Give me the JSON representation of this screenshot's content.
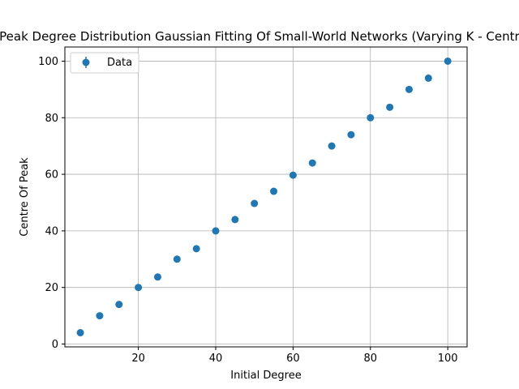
{
  "chart_data": {
    "type": "scatter",
    "title": "Centre Of Peak Degree Distribution Gaussian Fitting Of Small-World Networks (Varying K - Centre Of Peak)",
    "xlabel": "Initial Degree",
    "ylabel": "Centre Of Peak",
    "xlim": [
      1,
      105
    ],
    "ylim": [
      -1,
      105
    ],
    "xticks": [
      20,
      40,
      60,
      80,
      100
    ],
    "yticks": [
      0,
      20,
      40,
      60,
      80,
      100
    ],
    "grid": true,
    "legend": {
      "position": "top-left",
      "entries": [
        "Data"
      ]
    },
    "series": [
      {
        "name": "Data",
        "color": "#1f77b4",
        "marker": "circle",
        "points": [
          {
            "x": 5,
            "y": 4.0
          },
          {
            "x": 10,
            "y": 10.0
          },
          {
            "x": 15,
            "y": 14.0
          },
          {
            "x": 20,
            "y": 20.0
          },
          {
            "x": 25,
            "y": 23.7
          },
          {
            "x": 30,
            "y": 30.0
          },
          {
            "x": 35,
            "y": 33.7
          },
          {
            "x": 40,
            "y": 40.0
          },
          {
            "x": 45,
            "y": 44.0
          },
          {
            "x": 50,
            "y": 49.7
          },
          {
            "x": 55,
            "y": 54.0
          },
          {
            "x": 60,
            "y": 59.7
          },
          {
            "x": 65,
            "y": 64.0
          },
          {
            "x": 70,
            "y": 70.0
          },
          {
            "x": 75,
            "y": 74.0
          },
          {
            "x": 80,
            "y": 80.0
          },
          {
            "x": 85,
            "y": 83.7
          },
          {
            "x": 90,
            "y": 90.0
          },
          {
            "x": 95,
            "y": 94.0
          },
          {
            "x": 100,
            "y": 100.0
          }
        ]
      }
    ]
  }
}
